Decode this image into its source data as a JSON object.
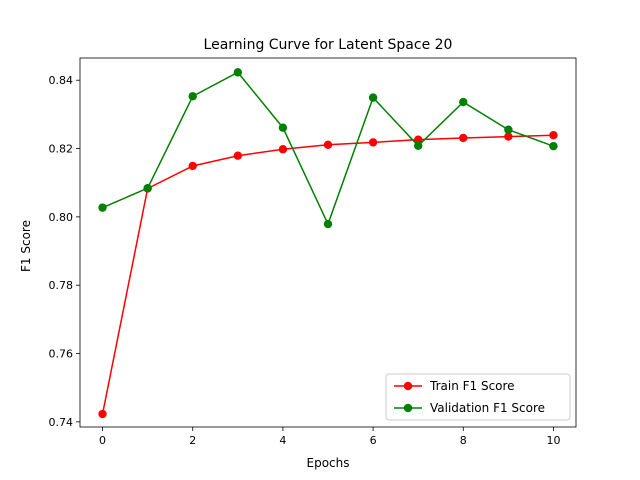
{
  "chart_data": {
    "type": "line",
    "title": "Learning Curve for Latent Space 20",
    "xlabel": "Epochs",
    "ylabel": "F1 Score",
    "xlim": [
      -0.5,
      10.5
    ],
    "ylim": [
      0.7385,
      0.8465
    ],
    "x": [
      0,
      1,
      2,
      3,
      4,
      5,
      6,
      7,
      8,
      9,
      10
    ],
    "x_ticks": [
      0,
      2,
      4,
      6,
      8,
      10
    ],
    "y_ticks": [
      0.74,
      0.76,
      0.78,
      0.8,
      0.82,
      0.84
    ],
    "grid": false,
    "legend_position": "lower right",
    "series": [
      {
        "name": "Train F1 Score",
        "color": "#ff0000",
        "marker": "circle",
        "values": [
          0.7423,
          0.8083,
          0.8149,
          0.8179,
          0.8198,
          0.8211,
          0.8218,
          0.8226,
          0.8231,
          0.8235,
          0.8239
        ]
      },
      {
        "name": "Validation F1 Score",
        "color": "#008000",
        "marker": "circle",
        "values": [
          0.8027,
          0.8084,
          0.8353,
          0.8423,
          0.8261,
          0.7979,
          0.8349,
          0.8208,
          0.8336,
          0.8255,
          0.8207
        ]
      }
    ]
  }
}
